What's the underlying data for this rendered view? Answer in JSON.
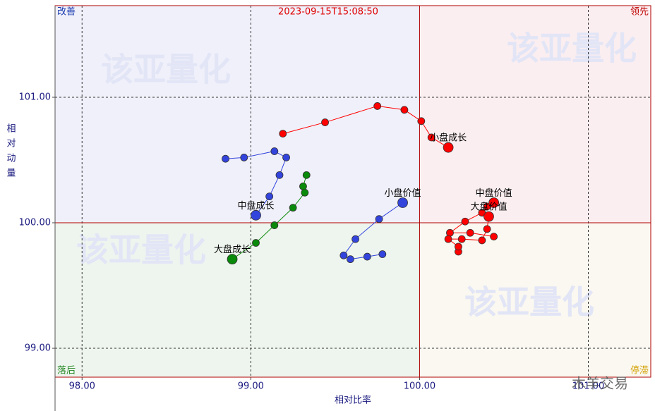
{
  "chart_data": {
    "type": "scatter",
    "title": "2023-09-15T15:08:50",
    "x_label": "相对比率",
    "y_label": "相对动量",
    "xlim": [
      97.84,
      101.37
    ],
    "ylim": [
      98.77,
      101.73
    ],
    "xticks": [
      {
        "value": 98,
        "label": "98.00"
      },
      {
        "value": 99,
        "label": "99.00"
      },
      {
        "value": 100,
        "label": "100.00"
      },
      {
        "value": 101,
        "label": "101.00"
      }
    ],
    "yticks": [
      {
        "value": 99,
        "label": "99.00"
      },
      {
        "value": 100,
        "label": "100.00"
      },
      {
        "value": 101,
        "label": "101.00"
      }
    ],
    "grid": true,
    "center": [
      100,
      100
    ],
    "quadrants": [
      {
        "label": "改善",
        "corner": "top-left",
        "color": "#1a3bb0",
        "fill": "#f0f0fa"
      },
      {
        "label": "领先",
        "corner": "top-right",
        "color": "#c00000",
        "fill": "#fbeef0"
      },
      {
        "label": "落后",
        "corner": "bottom-left",
        "color": "#2a8a2a",
        "fill": "#eef5ee"
      },
      {
        "label": "停滞",
        "corner": "bottom-right",
        "color": "#d4a000",
        "fill": "#faf8f0"
      }
    ],
    "watermarks": [
      "该亚量化",
      "该亚量化",
      "该亚量化",
      "该亚量化"
    ],
    "source": "木羊交易",
    "series": [
      {
        "name": "小盘成长",
        "color": "#ff0000",
        "x": [
          99.19,
          99.44,
          99.75,
          99.91,
          100.01,
          100.07,
          100.17
        ],
        "y": [
          100.71,
          100.8,
          100.93,
          100.9,
          100.81,
          100.68,
          100.6
        ]
      },
      {
        "name": "中盘成长",
        "color": "#3344dd",
        "x": [
          98.85,
          98.96,
          99.14,
          99.21,
          99.17,
          99.11,
          99.03
        ],
        "y": [
          100.51,
          100.52,
          100.57,
          100.52,
          100.38,
          100.21,
          100.06
        ]
      },
      {
        "name": "大盘成长",
        "color": "#0a8a0a",
        "x": [
          99.33,
          99.31,
          99.32,
          99.25,
          99.14,
          99.03,
          98.89
        ],
        "y": [
          100.38,
          100.29,
          100.24,
          100.12,
          99.98,
          99.84,
          99.71
        ]
      },
      {
        "name": "小盘价值",
        "color": "#3344dd",
        "x": [
          99.78,
          99.69,
          99.59,
          99.55,
          99.62,
          99.76,
          99.9
        ],
        "y": [
          99.75,
          99.73,
          99.71,
          99.74,
          99.87,
          100.03,
          100.16
        ]
      },
      {
        "name": "中盘价值",
        "color": "#ff0000",
        "x": [
          100.44,
          100.3,
          100.18,
          100.27,
          100.37,
          100.4,
          100.44
        ],
        "y": [
          99.89,
          99.92,
          99.92,
          100.01,
          100.08,
          100.13,
          100.16
        ]
      },
      {
        "name": "大盘价值",
        "color": "#ff0000",
        "x": [
          100.23,
          100.23,
          100.17,
          100.25,
          100.37,
          100.4,
          100.41
        ],
        "y": [
          99.77,
          99.81,
          99.87,
          99.87,
          99.86,
          99.95,
          100.05
        ]
      }
    ]
  }
}
